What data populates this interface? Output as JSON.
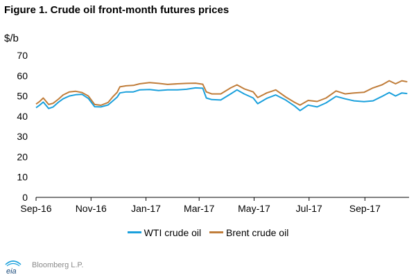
{
  "figure": {
    "title": "Figure 1. Crude oil front-month futures prices",
    "source": "Bloomberg L.P.",
    "logo_text": "eia"
  },
  "colors": {
    "wti": "#1aa0dc",
    "brent": "#c07d3a",
    "axis": "#000000",
    "source_text": "#8a8a8a"
  },
  "chart_data": {
    "type": "line",
    "title": "Figure 1. Crude oil front-month futures prices",
    "ylabel": "$/b",
    "xlabel": "",
    "ylim": [
      0,
      70
    ],
    "yticks": [
      0,
      10,
      20,
      30,
      40,
      50,
      60,
      70
    ],
    "grid": false,
    "legend_placement": "bottom",
    "xlim": [
      "2016-09-01",
      "2017-10-20"
    ],
    "x_tick_labels": [
      {
        "date": "2016-09-01",
        "label": "Sep-16"
      },
      {
        "date": "2016-11-01",
        "label": "Nov-16"
      },
      {
        "date": "2017-01-01",
        "label": "Jan-17"
      },
      {
        "date": "2017-03-01",
        "label": "Mar-17"
      },
      {
        "date": "2017-05-01",
        "label": "May-17"
      },
      {
        "date": "2017-07-01",
        "label": "Jul-17"
      },
      {
        "date": "2017-09-01",
        "label": "Sep-17"
      }
    ],
    "x": [
      "2016-09-01",
      "2016-09-05",
      "2016-09-09",
      "2016-09-15",
      "2016-09-20",
      "2016-09-26",
      "2016-10-01",
      "2016-10-08",
      "2016-10-15",
      "2016-10-22",
      "2016-10-29",
      "2016-11-05",
      "2016-11-12",
      "2016-11-20",
      "2016-11-25",
      "2016-11-30",
      "2016-12-03",
      "2016-12-10",
      "2016-12-18",
      "2016-12-25",
      "2017-01-05",
      "2017-01-15",
      "2017-01-25",
      "2017-02-05",
      "2017-02-15",
      "2017-02-25",
      "2017-03-05",
      "2017-03-09",
      "2017-03-15",
      "2017-03-25",
      "2017-04-05",
      "2017-04-12",
      "2017-04-20",
      "2017-04-30",
      "2017-05-05",
      "2017-05-15",
      "2017-05-25",
      "2017-06-05",
      "2017-06-15",
      "2017-06-21",
      "2017-06-30",
      "2017-07-10",
      "2017-07-20",
      "2017-07-31",
      "2017-08-10",
      "2017-08-20",
      "2017-08-31",
      "2017-09-10",
      "2017-09-20",
      "2017-09-28",
      "2017-10-05",
      "2017-10-12",
      "2017-10-18"
    ],
    "series": [
      {
        "name": "WTI crude oil",
        "color": "#1aa0dc",
        "values": [
          44.2,
          45.5,
          47.0,
          43.8,
          44.6,
          47.0,
          48.6,
          50.0,
          50.6,
          50.8,
          48.8,
          44.7,
          44.6,
          45.6,
          47.5,
          49.4,
          51.5,
          52.0,
          52.0,
          53.0,
          53.2,
          52.7,
          53.0,
          53.0,
          53.3,
          54.0,
          53.8,
          49.0,
          48.2,
          48.0,
          51.0,
          53.0,
          51.0,
          49.0,
          46.2,
          48.8,
          50.5,
          48.0,
          45.0,
          42.8,
          45.5,
          44.6,
          46.6,
          49.8,
          48.6,
          47.6,
          47.2,
          47.6,
          49.8,
          51.7,
          50.0,
          51.5,
          51.2
        ]
      },
      {
        "name": "Brent crude oil",
        "color": "#c07d3a",
        "values": [
          46.0,
          47.3,
          49.0,
          45.8,
          46.4,
          48.5,
          50.5,
          52.0,
          52.3,
          51.7,
          50.0,
          45.8,
          45.4,
          46.8,
          49.5,
          51.8,
          54.5,
          55.0,
          55.2,
          56.0,
          56.6,
          56.2,
          55.7,
          56.0,
          56.2,
          56.3,
          55.8,
          52.0,
          51.0,
          51.0,
          54.0,
          55.5,
          53.5,
          52.0,
          49.2,
          51.5,
          53.0,
          49.5,
          46.8,
          45.5,
          47.8,
          47.3,
          49.0,
          52.5,
          51.0,
          51.5,
          51.8,
          54.0,
          55.5,
          57.5,
          56.0,
          57.5,
          57.0
        ]
      }
    ]
  }
}
